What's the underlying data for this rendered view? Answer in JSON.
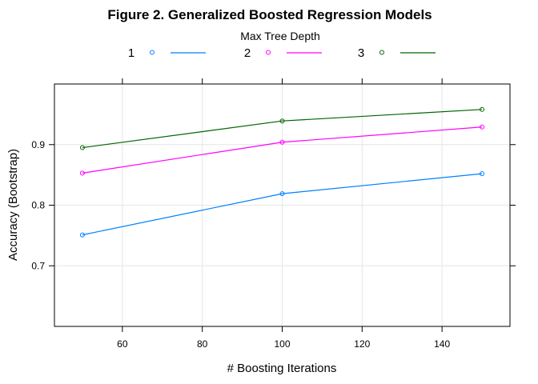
{
  "chart_data": {
    "type": "line",
    "title": "Figure 2. Generalized Boosted Regression Models",
    "legend_title": "Max Tree Depth",
    "legend_position": "top",
    "xlabel": "# Boosting Iterations",
    "ylabel": "Accuracy (Bootstrap)",
    "x": [
      50,
      100,
      150
    ],
    "xticks": [
      60,
      80,
      100,
      120,
      140
    ],
    "yticks": [
      0.7,
      0.8,
      0.9
    ],
    "xlim": [
      43,
      157
    ],
    "ylim": [
      0.6,
      1.0
    ],
    "grid": true,
    "series": [
      {
        "name": "1",
        "color": "#0080ff",
        "values": [
          0.751,
          0.819,
          0.852
        ]
      },
      {
        "name": "2",
        "color": "#ff00ff",
        "values": [
          0.853,
          0.904,
          0.929
        ]
      },
      {
        "name": "3",
        "color": "#006400",
        "values": [
          0.895,
          0.939,
          0.958
        ]
      }
    ]
  }
}
